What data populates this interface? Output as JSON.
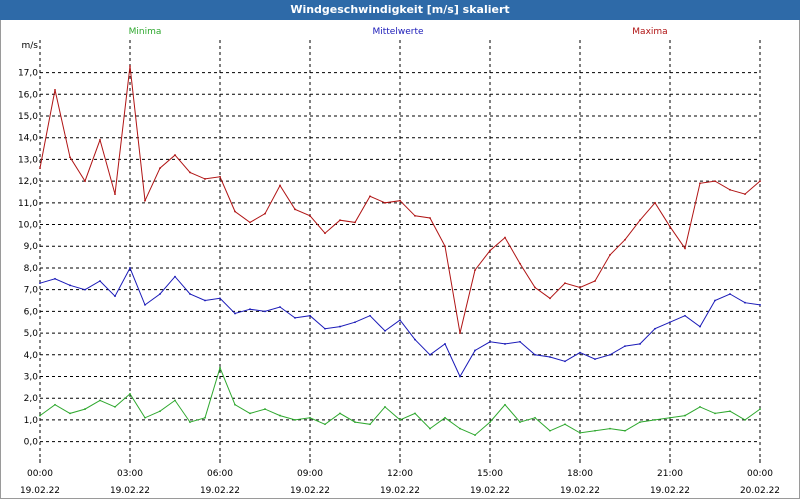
{
  "window": {
    "title": "Windgeschwindigkeit [m/s] skaliert"
  },
  "chart_data": {
    "type": "line",
    "title": "Windgeschwindigkeit [m/s] skaliert",
    "ylabel": "m/s",
    "xlabel": "",
    "ylim": [
      -0.8,
      18.5
    ],
    "yticks": [
      "0,0",
      "1,0",
      "2,0",
      "3,0",
      "4,0",
      "5,0",
      "6,0",
      "7,0",
      "8,0",
      "9,0",
      "10,0",
      "11,0",
      "12,0",
      "13,0",
      "14,0",
      "15,0",
      "16,0",
      "17,0"
    ],
    "x_tick_times": [
      "00:00",
      "03:00",
      "06:00",
      "09:00",
      "12:00",
      "15:00",
      "18:00",
      "21:00",
      "00:00"
    ],
    "x_tick_dates": [
      "19.02.22",
      "19.02.22",
      "19.02.22",
      "19.02.22",
      "19.02.22",
      "19.02.22",
      "19.02.22",
      "19.02.22",
      "20.02.22"
    ],
    "x_hours": [
      0,
      3,
      6,
      9,
      12,
      15,
      18,
      21,
      24
    ],
    "grid": true,
    "legend_placement": "top",
    "series": [
      {
        "name": "Minima",
        "color": "#2fa82f",
        "x": [
          0,
          0.5,
          1,
          1.5,
          2,
          2.5,
          3,
          3.5,
          4,
          4.5,
          5,
          5.5,
          6,
          6.5,
          7,
          7.5,
          8,
          8.5,
          9,
          9.5,
          10,
          10.5,
          11,
          11.5,
          12,
          12.5,
          13,
          13.5,
          14,
          14.5,
          15,
          15.5,
          16,
          16.5,
          17,
          17.5,
          18,
          18.5,
          19,
          19.5,
          20,
          20.5,
          21,
          21.5,
          22,
          22.5,
          23,
          23.5,
          24
        ],
        "values": [
          1.2,
          1.7,
          1.3,
          1.5,
          1.9,
          1.6,
          2.2,
          1.1,
          1.4,
          1.9,
          0.9,
          1.1,
          3.4,
          1.7,
          1.3,
          1.5,
          1.2,
          1.0,
          1.1,
          0.8,
          1.3,
          0.9,
          0.8,
          1.6,
          1.0,
          1.3,
          0.6,
          1.1,
          0.6,
          0.3,
          0.9,
          1.7,
          0.9,
          1.1,
          0.5,
          0.8,
          0.4,
          0.5,
          0.6,
          0.5,
          0.9,
          1.0,
          1.1,
          1.2,
          1.6,
          1.3,
          1.4,
          1.0,
          1.5
        ]
      },
      {
        "name": "Mittelwerte",
        "color": "#1a1ab8",
        "x": [
          0,
          0.5,
          1,
          1.5,
          2,
          2.5,
          3,
          3.5,
          4,
          4.5,
          5,
          5.5,
          6,
          6.5,
          7,
          7.5,
          8,
          8.5,
          9,
          9.5,
          10,
          10.5,
          11,
          11.5,
          12,
          12.5,
          13,
          13.5,
          14,
          14.5,
          15,
          15.5,
          16,
          16.5,
          17,
          17.5,
          18,
          18.5,
          19,
          19.5,
          20,
          20.5,
          21,
          21.5,
          22,
          22.5,
          23,
          23.5,
          24
        ],
        "values": [
          7.3,
          7.5,
          7.2,
          7.0,
          7.4,
          6.7,
          8.0,
          6.3,
          6.8,
          7.6,
          6.8,
          6.5,
          6.6,
          5.9,
          6.1,
          6.0,
          6.2,
          5.7,
          5.8,
          5.2,
          5.3,
          5.5,
          5.8,
          5.1,
          5.6,
          4.7,
          4.0,
          4.5,
          3.0,
          4.2,
          4.6,
          4.5,
          4.6,
          4.0,
          3.9,
          3.7,
          4.1,
          3.8,
          4.0,
          4.4,
          4.5,
          5.2,
          5.5,
          5.8,
          5.3,
          6.5,
          6.8,
          6.4,
          6.3
        ]
      },
      {
        "name": "Maxima",
        "color": "#b01414",
        "x": [
          0,
          0.5,
          1,
          1.5,
          2,
          2.5,
          3,
          3.5,
          4,
          4.5,
          5,
          5.5,
          6,
          6.5,
          7,
          7.5,
          8,
          8.5,
          9,
          9.5,
          10,
          10.5,
          11,
          11.5,
          12,
          12.5,
          13,
          13.5,
          14,
          14.5,
          15,
          15.5,
          16,
          16.5,
          17,
          17.5,
          18,
          18.5,
          19,
          19.5,
          20,
          20.5,
          21,
          21.5,
          22,
          22.5,
          23,
          23.5,
          24
        ],
        "values": [
          12.6,
          16.2,
          13.1,
          12.0,
          13.9,
          11.4,
          17.3,
          11.1,
          12.6,
          13.2,
          12.4,
          12.1,
          12.2,
          10.6,
          10.1,
          10.5,
          11.8,
          10.7,
          10.4,
          9.6,
          10.2,
          10.1,
          11.3,
          11.0,
          11.1,
          10.4,
          10.3,
          9.0,
          5.0,
          7.9,
          8.8,
          9.4,
          8.2,
          7.1,
          6.6,
          7.3,
          7.1,
          7.4,
          8.6,
          9.3,
          10.2,
          11.0,
          9.9,
          8.9,
          11.9,
          12.0,
          11.6,
          11.4,
          12.0
        ]
      }
    ]
  }
}
